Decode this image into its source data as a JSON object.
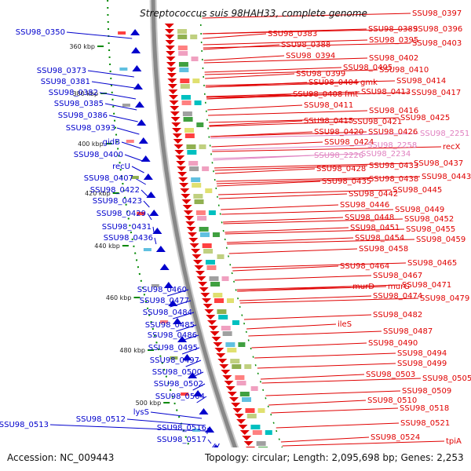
{
  "title": "Streptococcus suis 98HAH33, complete genome",
  "accession_text": "Accession: NC_009443",
  "topology_text": "Topology: circular; Length: 2,095,698 bp; Genes: 2,253",
  "colors": {
    "minus_strand": "#0000cc",
    "plus_strand": "#e00000",
    "pink_gene": "#e080c0",
    "backbone": "#888888",
    "tick": "#008800"
  },
  "ruler_ticks": [
    "360 kbp",
    "380 kbp",
    "400 kbp",
    "420 kbp",
    "440 kbp",
    "460 kbp",
    "480 kbp",
    "500 kbp",
    "520 kbp"
  ],
  "left_labels": [
    "SSU98_0350",
    "SSU98_0373",
    "SSU98_0381",
    "SSU98_0382",
    "SSU98_0385",
    "SSU98_0386",
    "SSU98_0393",
    "gidB",
    "SSU98_0400",
    "recU",
    "SSU98_0407",
    "SSU98_0422",
    "SSU98_0423",
    "SSU98_0429",
    "SSU98_0431",
    "SSU98_0436",
    "SSU98_0460",
    "SSU98_0477",
    "SSU98_0484",
    "SSU98_0485",
    "SSU98_0486",
    "SSU98_0495",
    "SSU98_0497",
    "SSU98_0500",
    "SSU98_0502",
    "SSU98_0504",
    "lysS",
    "SSU98_0512",
    "SSU98_0513",
    "SSU98_0516",
    "SSU98_0517",
    "SSU98_0526",
    "SSU98_0527"
  ],
  "right_labels": [
    {
      "text": "SSU98_0397",
      "pink": false
    },
    {
      "text": "SSU98_0389",
      "pink": false
    },
    {
      "text": "SSU98_0396",
      "pink": false
    },
    {
      "text": "SSU98_0383",
      "pink": false
    },
    {
      "text": "SSU98_0395",
      "pink": false
    },
    {
      "text": "SSU98_0388",
      "pink": false
    },
    {
      "text": "SSU98_0403",
      "pink": false
    },
    {
      "text": "SSU98_0394",
      "pink": false
    },
    {
      "text": "SSU98_0402",
      "pink": false
    },
    {
      "text": "SSU98_0405",
      "pink": false
    },
    {
      "text": "SSU98_0399",
      "pink": false
    },
    {
      "text": "SSU98_0410",
      "pink": false
    },
    {
      "text": "SSU98_0404",
      "pink": false
    },
    {
      "text": "gmk",
      "pink": false
    },
    {
      "text": "SSU98_0414",
      "pink": false
    },
    {
      "text": "SSU98_0408",
      "pink": false
    },
    {
      "text": "fmt",
      "pink": false
    },
    {
      "text": "SSU98_0413",
      "pink": false
    },
    {
      "text": "SSU98_0417",
      "pink": false
    },
    {
      "text": "SSU98_0411",
      "pink": false
    },
    {
      "text": "SSU98_0416",
      "pink": false
    },
    {
      "text": "SSU98_0425",
      "pink": false
    },
    {
      "text": "SSU98_0415",
      "pink": false
    },
    {
      "text": "SSU98_0421",
      "pink": false
    },
    {
      "text": "SSU98_0420",
      "pink": false
    },
    {
      "text": "SSU98_0426",
      "pink": false
    },
    {
      "text": "SSU98_2251",
      "pink": true
    },
    {
      "text": "SSU98_0424",
      "pink": false
    },
    {
      "text": "SSU98_2258",
      "pink": true
    },
    {
      "text": "recX",
      "pink": false
    },
    {
      "text": "SSU98_2226",
      "pink": true
    },
    {
      "text": "SSU98_2234",
      "pink": true
    },
    {
      "text": "SSU98_0437",
      "pink": false
    },
    {
      "text": "SSU98_0428",
      "pink": false
    },
    {
      "text": "SSU98_0433",
      "pink": false
    },
    {
      "text": "SSU98_0443",
      "pink": false
    },
    {
      "text": "SSU98_0435",
      "pink": false
    },
    {
      "text": "SSU98_0438",
      "pink": false
    },
    {
      "text": "SSU98_0445",
      "pink": false
    },
    {
      "text": "SSU98_0442",
      "pink": false
    },
    {
      "text": "SSU98_0446",
      "pink": false
    },
    {
      "text": "SSU98_0449",
      "pink": false
    },
    {
      "text": "SSU98_0448",
      "pink": false
    },
    {
      "text": "SSU98_0452",
      "pink": false
    },
    {
      "text": "SSU98_0451",
      "pink": false
    },
    {
      "text": "SSU98_0455",
      "pink": false
    },
    {
      "text": "SSU98_0454",
      "pink": false
    },
    {
      "text": "SSU98_0459",
      "pink": false
    },
    {
      "text": "SSU98_0458",
      "pink": false
    },
    {
      "text": "SSU98_0465",
      "pink": false
    },
    {
      "text": "SSU98_0464",
      "pink": false
    },
    {
      "text": "SSU98_0467",
      "pink": false
    },
    {
      "text": "murD",
      "pink": false
    },
    {
      "text": "murG",
      "pink": false
    },
    {
      "text": "SSU98_0471",
      "pink": false
    },
    {
      "text": "SSU98_0474",
      "pink": false
    },
    {
      "text": "SSU98_0479",
      "pink": false
    },
    {
      "text": "SSU98_0482",
      "pink": false
    },
    {
      "text": "ileS",
      "pink": false
    },
    {
      "text": "SSU98_0487",
      "pink": false
    },
    {
      "text": "SSU98_0490",
      "pink": false
    },
    {
      "text": "SSU98_0494",
      "pink": false
    },
    {
      "text": "SSU98_0499",
      "pink": false
    },
    {
      "text": "SSU98_0503",
      "pink": false
    },
    {
      "text": "SSU98_0505",
      "pink": false
    },
    {
      "text": "SSU98_0509",
      "pink": false
    },
    {
      "text": "SSU98_0510",
      "pink": false
    },
    {
      "text": "SSU98_0518",
      "pink": false
    },
    {
      "text": "SSU98_0521",
      "pink": false
    },
    {
      "text": "SSU98_0524",
      "pink": false
    },
    {
      "text": "tpiA",
      "pink": false
    }
  ]
}
